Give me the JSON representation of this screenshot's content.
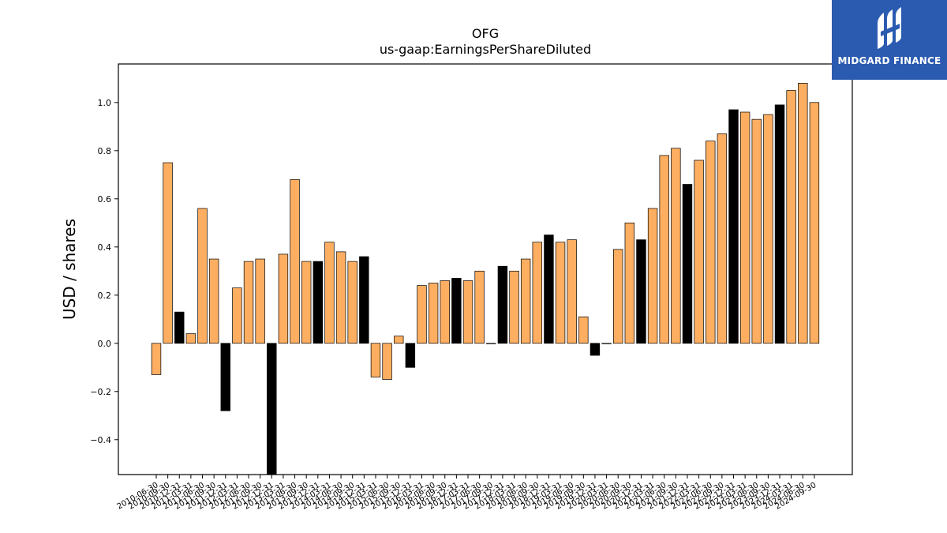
{
  "brand": {
    "name": "MIDGARD FINANCE",
    "bg_color": "#2b5bb0",
    "text_color": "#ffffff",
    "mark": "logo-mark-icon"
  },
  "chart_data": {
    "type": "bar",
    "title": "OFG",
    "subtitle": "us-gaap:EarningsPerShareDiluted",
    "ylabel": "USD / shares",
    "xlabel": "",
    "ylim": [
      -0.545,
      1.16
    ],
    "yticks": [
      -0.4,
      -0.2,
      0.0,
      0.2,
      0.4,
      0.6,
      0.8,
      1.0
    ],
    "ytick_labels": [
      "−0.4",
      "−0.2",
      "0.0",
      "0.2",
      "0.4",
      "0.6",
      "0.8",
      "1.0"
    ],
    "grid": false,
    "legend": "none",
    "colors": {
      "quarterly": "#fdae61",
      "annual": "#000000",
      "edge": "#000000"
    },
    "categories": [
      "2010-06-30",
      "2010-09-30",
      "2010-12-31",
      "2011-03-31",
      "2011-06-30",
      "2011-09-30",
      "2011-12-31",
      "2012-03-31",
      "2012-06-30",
      "2012-09-30",
      "2012-12-31",
      "2013-03-31",
      "2013-06-30",
      "2013-09-30",
      "2013-12-31",
      "2014-03-31",
      "2014-06-30",
      "2014-09-30",
      "2014-12-31",
      "2015-03-31",
      "2015-06-30",
      "2015-09-30",
      "2015-12-31",
      "2016-03-31",
      "2016-06-30",
      "2016-09-30",
      "2016-12-31",
      "2017-03-31",
      "2017-06-30",
      "2017-09-30",
      "2017-12-31",
      "2018-03-31",
      "2018-06-30",
      "2018-09-30",
      "2018-12-31",
      "2019-03-31",
      "2019-06-30",
      "2019-09-30",
      "2019-12-31",
      "2020-03-31",
      "2020-06-30",
      "2020-09-30",
      "2020-12-31",
      "2021-03-31",
      "2021-06-30",
      "2021-09-30",
      "2021-12-31",
      "2022-03-31",
      "2022-06-30",
      "2022-09-30",
      "2022-12-31",
      "2023-03-31",
      "2023-06-30",
      "2023-09-30",
      "2023-12-31",
      "2024-03-31",
      "2024-06-30",
      "2024-09-30"
    ],
    "values": [
      -0.13,
      0.75,
      0.13,
      0.04,
      0.56,
      0.35,
      -0.28,
      0.23,
      0.34,
      0.35,
      -0.56,
      0.37,
      0.68,
      0.34,
      0.34,
      0.42,
      0.38,
      0.34,
      0.36,
      -0.14,
      -0.15,
      0.03,
      -0.1,
      0.24,
      0.25,
      0.26,
      0.27,
      0.26,
      0.3,
      0.0,
      0.32,
      0.3,
      0.35,
      0.42,
      0.45,
      0.42,
      0.43,
      0.11,
      -0.05,
      0.0,
      0.39,
      0.5,
      0.43,
      0.56,
      0.78,
      0.81,
      0.66,
      0.76,
      0.84,
      0.87,
      0.97,
      0.96,
      0.93,
      0.95,
      0.99,
      1.05,
      1.08,
      1.0
    ],
    "annual_flags": [
      0,
      0,
      1,
      0,
      0,
      0,
      1,
      0,
      0,
      0,
      1,
      0,
      0,
      0,
      1,
      0,
      0,
      0,
      1,
      0,
      0,
      0,
      1,
      0,
      0,
      0,
      1,
      0,
      0,
      0,
      1,
      0,
      0,
      0,
      1,
      0,
      0,
      0,
      1,
      0,
      0,
      0,
      1,
      0,
      0,
      0,
      1,
      0,
      0,
      0,
      1,
      0,
      0,
      0,
      1,
      0,
      0,
      0
    ]
  }
}
